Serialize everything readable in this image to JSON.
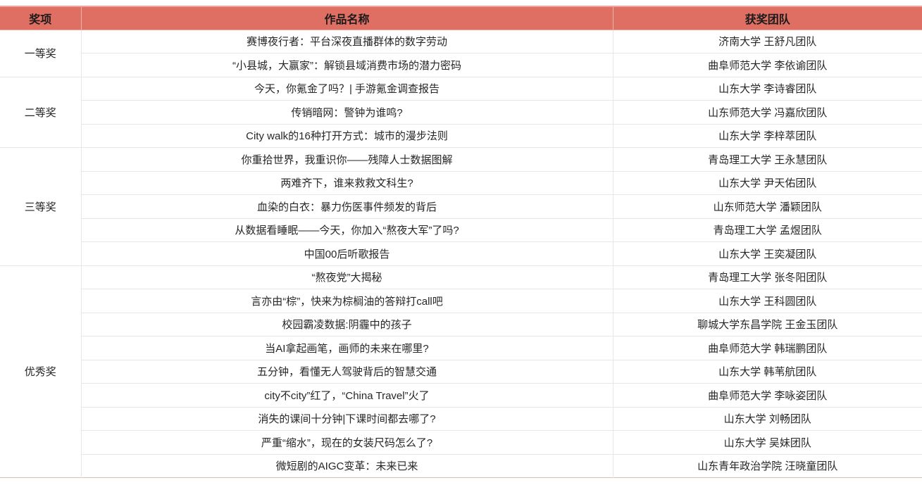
{
  "colors": {
    "header_bg": "#df6f63",
    "header_divider": "#f0b4ac",
    "header_edge": "#eca49b",
    "grid_line": "#e7e7e7",
    "bottom_line": "#ddbcb4",
    "text_color": "#262626"
  },
  "table": {
    "columns": [
      {
        "key": "award",
        "label": "奖项"
      },
      {
        "key": "work",
        "label": "作品名称"
      },
      {
        "key": "team",
        "label": "获奖团队"
      }
    ],
    "groups": [
      {
        "award": "一等奖",
        "rows": [
          {
            "work": "赛博夜行者：平台深夜直播群体的数字劳动",
            "team": "济南大学 王舒凡团队"
          },
          {
            "work": "“小县城，大赢家”：解锁县域消费市场的潜力密码",
            "team": "曲阜师范大学 李依谕团队"
          }
        ]
      },
      {
        "award": "二等奖",
        "rows": [
          {
            "work": "今天，你氪金了吗？| 手游氪金调查报告",
            "team": "山东大学 李诗睿团队"
          },
          {
            "work": "传销暗网：警钟为谁鸣?",
            "team": "山东师范大学 冯嘉欣团队"
          },
          {
            "work": "City walk的16种打开方式：城市的漫步法则",
            "team": "山东大学 李梓萃团队"
          }
        ]
      },
      {
        "award": "三等奖",
        "rows": [
          {
            "work": "你重拾世界，我重识你——残障人士数据图解",
            "team": "青岛理工大学 王永慧团队"
          },
          {
            "work": "两难齐下，谁来救救文科生?",
            "team": "山东大学 尹天佑团队"
          },
          {
            "work": "血染的白衣：暴力伤医事件频发的背后",
            "team": "山东师范大学 潘颖团队"
          },
          {
            "work": "从数据看睡眠——今天，你加入“熬夜大军”了吗?",
            "team": "青岛理工大学 孟煜团队"
          },
          {
            "work": "中国00后听歌报告",
            "team": "山东大学 王奕凝团队"
          }
        ]
      },
      {
        "award": "优秀奖",
        "rows": [
          {
            "work": "“熬夜党”大揭秘",
            "team": "青岛理工大学 张冬阳团队"
          },
          {
            "work": "言亦由“棕”，快来为棕榈油的答辩打call吧",
            "team": "山东大学 王科圆团队"
          },
          {
            "work": "校园霸凌数据:阴霾中的孩子",
            "team": "聊城大学东昌学院 王金玉团队"
          },
          {
            "work": "当AI拿起画笔，画师的未来在哪里?",
            "team": "曲阜师范大学 韩瑞鹏团队"
          },
          {
            "work": "五分钟，看懂无人驾驶背后的智慧交通",
            "team": "山东大学 韩苇航团队"
          },
          {
            "work": "city不city”红了，“China Travel”火了",
            "team": "曲阜师范大学 李咏姿团队"
          },
          {
            "work": "消失的课间十分钟|下课时间都去哪了?",
            "team": "山东大学 刘畅团队"
          },
          {
            "work": "严重“缩水”，现在的女装尺码怎么了?",
            "team": "山东大学 吴妹团队"
          },
          {
            "work": "微短剧的AIGC变革：未来已来",
            "team": "山东青年政治学院 汪晓童团队"
          }
        ]
      }
    ]
  }
}
